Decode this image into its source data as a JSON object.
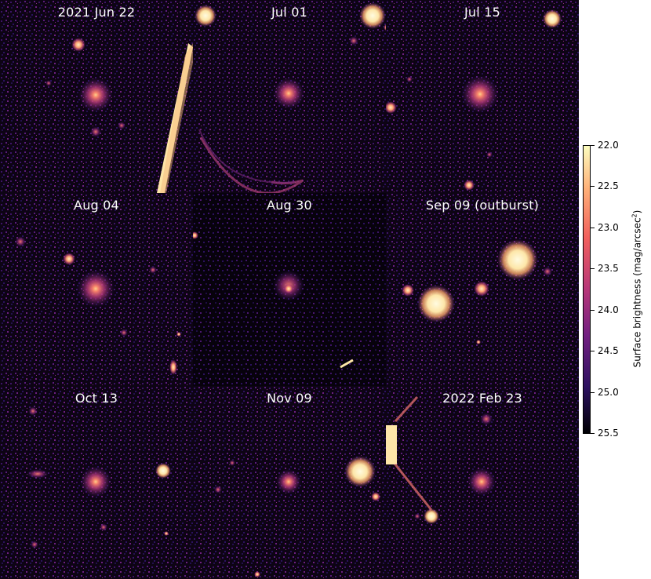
{
  "panels": [
    {
      "label": "2021 Jun 22"
    },
    {
      "label": "Jul 01"
    },
    {
      "label": "Jul 15"
    },
    {
      "label": "Aug 04"
    },
    {
      "label": "Aug 30"
    },
    {
      "label": "Sep 09 (outburst)"
    },
    {
      "label": "Oct 13"
    },
    {
      "label": "Nov 09"
    },
    {
      "label": "2022 Feb 23"
    }
  ],
  "colorbar": {
    "title": "Surface brightness (mag/arcsec",
    "title_sup": "2",
    "title_end": ")",
    "ticks": [
      "22.0",
      "22.5",
      "23.0",
      "23.5",
      "24.0",
      "24.5",
      "25.0",
      "25.5"
    ],
    "range": [
      22.0,
      25.5
    ],
    "colormap": "magma"
  }
}
